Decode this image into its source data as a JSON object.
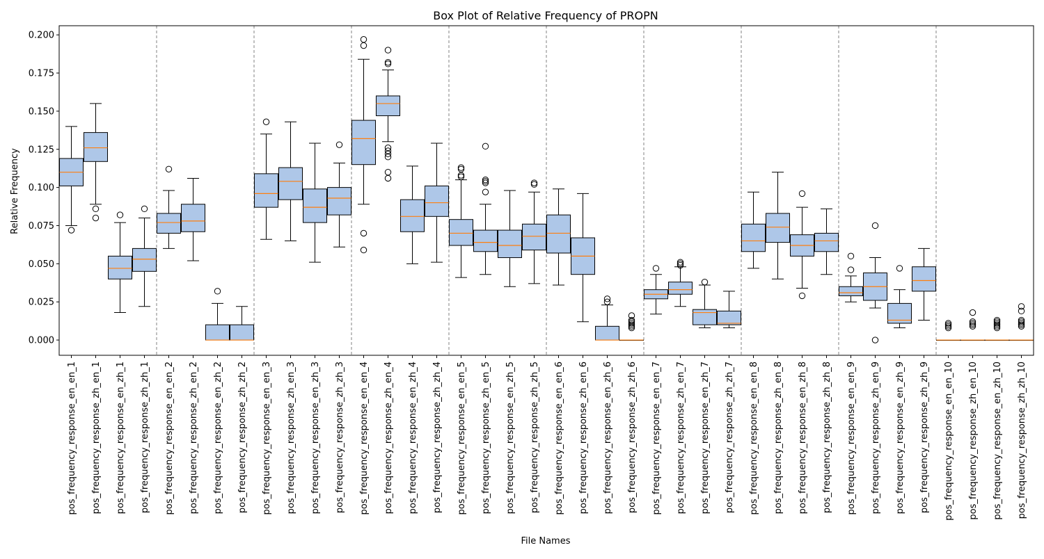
{
  "chart_data": {
    "type": "box",
    "title": "Box Plot of Relative Frequency of PROPN",
    "xlabel": "File Names",
    "ylabel": "Relative Frequency",
    "ylim": [
      -0.01,
      0.206
    ],
    "yticks": [
      0.0,
      0.025,
      0.05,
      0.075,
      0.1,
      0.125,
      0.15,
      0.175,
      0.2
    ],
    "ytick_labels": [
      "0.000",
      "0.025",
      "0.050",
      "0.075",
      "0.100",
      "0.125",
      "0.150",
      "0.175",
      "0.200"
    ],
    "group_separators_after": [
      4,
      8,
      12,
      16,
      20,
      24,
      28,
      32,
      36
    ],
    "colors": {
      "box_fill": "#aec7e8",
      "median": "#ff7f0e",
      "separator": "#808080"
    },
    "boxes": [
      {
        "label": "pos_frequency_response_en_en_1",
        "q1": 0.101,
        "median": 0.11,
        "q3": 0.119,
        "whislo": 0.075,
        "whishi": 0.14,
        "fliers": [
          0.072
        ]
      },
      {
        "label": "pos_frequency_response_zh_en_1",
        "q1": 0.117,
        "median": 0.126,
        "q3": 0.136,
        "whislo": 0.089,
        "whishi": 0.155,
        "fliers": [
          0.086,
          0.08
        ]
      },
      {
        "label": "pos_frequency_response_en_zh_1",
        "q1": 0.04,
        "median": 0.047,
        "q3": 0.055,
        "whislo": 0.018,
        "whishi": 0.077,
        "fliers": [
          0.082
        ]
      },
      {
        "label": "pos_frequency_response_zh_zh_1",
        "q1": 0.045,
        "median": 0.053,
        "q3": 0.06,
        "whislo": 0.022,
        "whishi": 0.08,
        "fliers": [
          0.086
        ]
      },
      {
        "label": "pos_frequency_response_en_en_2",
        "q1": 0.07,
        "median": 0.077,
        "q3": 0.083,
        "whislo": 0.06,
        "whishi": 0.098,
        "fliers": [
          0.112
        ]
      },
      {
        "label": "pos_frequency_response_zh_en_2",
        "q1": 0.071,
        "median": 0.078,
        "q3": 0.089,
        "whislo": 0.052,
        "whishi": 0.106,
        "fliers": []
      },
      {
        "label": "pos_frequency_response_en_zh_2",
        "q1": 0.0,
        "median": 0.0,
        "q3": 0.01,
        "whislo": 0.0,
        "whishi": 0.024,
        "fliers": [
          0.032
        ]
      },
      {
        "label": "pos_frequency_response_zh_zh_2",
        "q1": 0.0,
        "median": 0.0,
        "q3": 0.01,
        "whislo": 0.0,
        "whishi": 0.022,
        "fliers": []
      },
      {
        "label": "pos_frequency_response_en_en_3",
        "q1": 0.087,
        "median": 0.096,
        "q3": 0.109,
        "whislo": 0.066,
        "whishi": 0.135,
        "fliers": [
          0.143
        ]
      },
      {
        "label": "pos_frequency_response_zh_en_3",
        "q1": 0.092,
        "median": 0.104,
        "q3": 0.113,
        "whislo": 0.065,
        "whishi": 0.143,
        "fliers": []
      },
      {
        "label": "pos_frequency_response_en_zh_3",
        "q1": 0.077,
        "median": 0.087,
        "q3": 0.099,
        "whislo": 0.051,
        "whishi": 0.129,
        "fliers": []
      },
      {
        "label": "pos_frequency_response_zh_zh_3",
        "q1": 0.082,
        "median": 0.093,
        "q3": 0.1,
        "whislo": 0.061,
        "whishi": 0.116,
        "fliers": [
          0.128
        ]
      },
      {
        "label": "pos_frequency_response_en_en_4",
        "q1": 0.115,
        "median": 0.132,
        "q3": 0.144,
        "whislo": 0.089,
        "whishi": 0.184,
        "fliers": [
          0.197,
          0.193,
          0.07,
          0.059
        ]
      },
      {
        "label": "pos_frequency_response_zh_en_4",
        "q1": 0.147,
        "median": 0.155,
        "q3": 0.16,
        "whislo": 0.13,
        "whishi": 0.177,
        "fliers": [
          0.19,
          0.182,
          0.181,
          0.126,
          0.124,
          0.122,
          0.12,
          0.11,
          0.106
        ]
      },
      {
        "label": "pos_frequency_response_en_zh_4",
        "q1": 0.071,
        "median": 0.081,
        "q3": 0.092,
        "whislo": 0.05,
        "whishi": 0.114,
        "fliers": []
      },
      {
        "label": "pos_frequency_response_zh_zh_4",
        "q1": 0.081,
        "median": 0.09,
        "q3": 0.101,
        "whislo": 0.051,
        "whishi": 0.129,
        "fliers": []
      },
      {
        "label": "pos_frequency_response_en_en_5",
        "q1": 0.062,
        "median": 0.07,
        "q3": 0.079,
        "whislo": 0.041,
        "whishi": 0.105,
        "fliers": [
          0.113,
          0.112,
          0.108,
          0.107
        ]
      },
      {
        "label": "pos_frequency_response_zh_en_5",
        "q1": 0.058,
        "median": 0.064,
        "q3": 0.072,
        "whislo": 0.043,
        "whishi": 0.089,
        "fliers": [
          0.127,
          0.105,
          0.104,
          0.103,
          0.097
        ]
      },
      {
        "label": "pos_frequency_response_en_zh_5",
        "q1": 0.054,
        "median": 0.062,
        "q3": 0.072,
        "whislo": 0.035,
        "whishi": 0.098,
        "fliers": []
      },
      {
        "label": "pos_frequency_response_zh_zh_5",
        "q1": 0.059,
        "median": 0.068,
        "q3": 0.076,
        "whislo": 0.037,
        "whishi": 0.097,
        "fliers": [
          0.103,
          0.102
        ]
      },
      {
        "label": "pos_frequency_response_en_en_6",
        "q1": 0.057,
        "median": 0.07,
        "q3": 0.082,
        "whislo": 0.036,
        "whishi": 0.099,
        "fliers": []
      },
      {
        "label": "pos_frequency_response_zh_en_6",
        "q1": 0.043,
        "median": 0.055,
        "q3": 0.067,
        "whislo": 0.012,
        "whishi": 0.096,
        "fliers": []
      },
      {
        "label": "pos_frequency_response_en_zh_6",
        "q1": 0.0,
        "median": 0.0,
        "q3": 0.009,
        "whislo": 0.0,
        "whishi": 0.023,
        "fliers": [
          0.027,
          0.025
        ]
      },
      {
        "label": "pos_frequency_response_zh_zh_6",
        "q1": 0.0,
        "median": 0.0,
        "q3": 0.0,
        "whislo": 0.0,
        "whishi": 0.0,
        "fliers": [
          0.016,
          0.013,
          0.012,
          0.011,
          0.01,
          0.009,
          0.008
        ]
      },
      {
        "label": "pos_frequency_response_en_en_7",
        "q1": 0.027,
        "median": 0.03,
        "q3": 0.033,
        "whislo": 0.017,
        "whishi": 0.043,
        "fliers": [
          0.047
        ]
      },
      {
        "label": "pos_frequency_response_zh_en_7",
        "q1": 0.03,
        "median": 0.033,
        "q3": 0.038,
        "whislo": 0.022,
        "whishi": 0.048,
        "fliers": [
          0.051,
          0.05,
          0.049
        ]
      },
      {
        "label": "pos_frequency_response_en_zh_7",
        "q1": 0.01,
        "median": 0.018,
        "q3": 0.02,
        "whislo": 0.008,
        "whishi": 0.036,
        "fliers": [
          0.038
        ]
      },
      {
        "label": "pos_frequency_response_zh_zh_7",
        "q1": 0.01,
        "median": 0.011,
        "q3": 0.019,
        "whislo": 0.008,
        "whishi": 0.032,
        "fliers": []
      },
      {
        "label": "pos_frequency_response_en_en_8",
        "q1": 0.058,
        "median": 0.065,
        "q3": 0.076,
        "whislo": 0.047,
        "whishi": 0.097,
        "fliers": []
      },
      {
        "label": "pos_frequency_response_zh_en_8",
        "q1": 0.064,
        "median": 0.074,
        "q3": 0.083,
        "whislo": 0.04,
        "whishi": 0.11,
        "fliers": []
      },
      {
        "label": "pos_frequency_response_en_zh_8",
        "q1": 0.055,
        "median": 0.062,
        "q3": 0.069,
        "whislo": 0.034,
        "whishi": 0.087,
        "fliers": [
          0.096,
          0.029
        ]
      },
      {
        "label": "pos_frequency_response_zh_zh_8",
        "q1": 0.058,
        "median": 0.065,
        "q3": 0.07,
        "whislo": 0.043,
        "whishi": 0.086,
        "fliers": []
      },
      {
        "label": "pos_frequency_response_en_en_9",
        "q1": 0.029,
        "median": 0.031,
        "q3": 0.035,
        "whislo": 0.025,
        "whishi": 0.042,
        "fliers": [
          0.055,
          0.046
        ]
      },
      {
        "label": "pos_frequency_response_zh_en_9",
        "q1": 0.026,
        "median": 0.035,
        "q3": 0.044,
        "whislo": 0.021,
        "whishi": 0.054,
        "fliers": [
          0.075,
          0.0
        ]
      },
      {
        "label": "pos_frequency_response_en_zh_9",
        "q1": 0.011,
        "median": 0.013,
        "q3": 0.024,
        "whislo": 0.008,
        "whishi": 0.033,
        "fliers": [
          0.047
        ]
      },
      {
        "label": "pos_frequency_response_zh_zh_9",
        "q1": 0.032,
        "median": 0.039,
        "q3": 0.048,
        "whislo": 0.013,
        "whishi": 0.06,
        "fliers": []
      },
      {
        "label": "pos_frequency_response_en_en_10",
        "q1": 0.0,
        "median": 0.0,
        "q3": 0.0,
        "whislo": 0.0,
        "whishi": 0.0,
        "fliers": [
          0.011,
          0.01,
          0.009,
          0.008
        ]
      },
      {
        "label": "pos_frequency_response_zh_en_10",
        "q1": 0.0,
        "median": 0.0,
        "q3": 0.0,
        "whislo": 0.0,
        "whishi": 0.0,
        "fliers": [
          0.018,
          0.012,
          0.011,
          0.01,
          0.009
        ]
      },
      {
        "label": "pos_frequency_response_en_zh_10",
        "q1": 0.0,
        "median": 0.0,
        "q3": 0.0,
        "whislo": 0.0,
        "whishi": 0.0,
        "fliers": [
          0.013,
          0.012,
          0.011,
          0.01,
          0.009,
          0.008
        ]
      },
      {
        "label": "pos_frequency_response_zh_zh_10",
        "q1": 0.0,
        "median": 0.0,
        "q3": 0.0,
        "whislo": 0.0,
        "whishi": 0.0,
        "fliers": [
          0.022,
          0.019,
          0.013,
          0.012,
          0.011,
          0.01,
          0.009
        ]
      }
    ]
  }
}
